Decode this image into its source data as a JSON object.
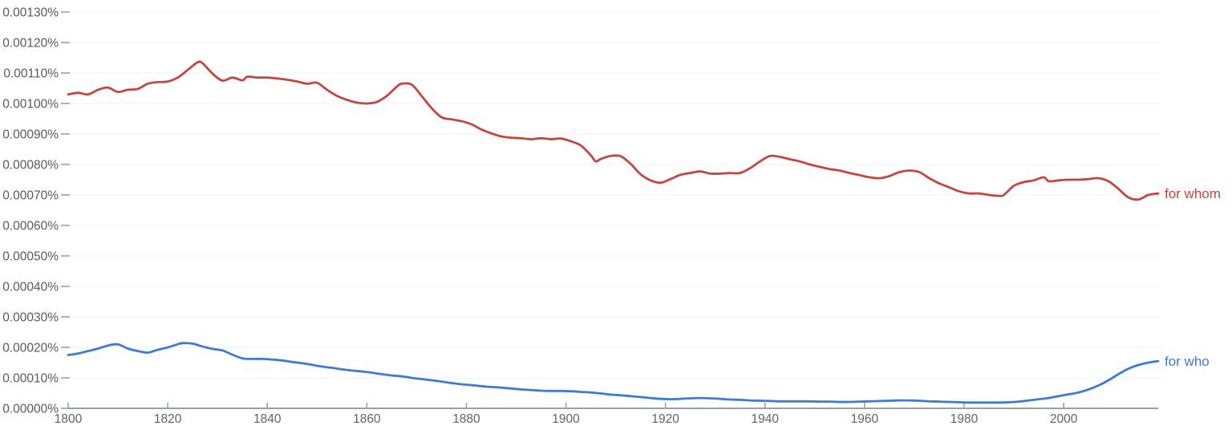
{
  "chart_data": {
    "type": "line",
    "title": "",
    "xlabel": "",
    "ylabel": "",
    "xlim": [
      1800,
      2019
    ],
    "ylim": [
      0,
      0.0013
    ],
    "grid": true,
    "legend_position": "end-of-line-labels",
    "grid_color": "#f2f2f2",
    "axis_color": "#9aa0a6",
    "tick_color": "#9aa0a6",
    "x_ticks": [
      {
        "value": 1800,
        "label": "1800"
      },
      {
        "value": 1820,
        "label": "1820"
      },
      {
        "value": 1840,
        "label": "1840"
      },
      {
        "value": 1860,
        "label": "1860"
      },
      {
        "value": 1880,
        "label": "1880"
      },
      {
        "value": 1900,
        "label": "1900"
      },
      {
        "value": 1920,
        "label": "1920"
      },
      {
        "value": 1940,
        "label": "1940"
      },
      {
        "value": 1960,
        "label": "1960"
      },
      {
        "value": 1980,
        "label": "1980"
      },
      {
        "value": 2000,
        "label": "2000"
      }
    ],
    "y_ticks": [
      {
        "value": 0.0,
        "label": "0.00000%"
      },
      {
        "value": 0.0001,
        "label": "0.00010%"
      },
      {
        "value": 0.0002,
        "label": "0.00020%"
      },
      {
        "value": 0.0003,
        "label": "0.00030%"
      },
      {
        "value": 0.0004,
        "label": "0.00040%"
      },
      {
        "value": 0.0005,
        "label": "0.00050%"
      },
      {
        "value": 0.0006,
        "label": "0.00060%"
      },
      {
        "value": 0.0007,
        "label": "0.00070%"
      },
      {
        "value": 0.0008,
        "label": "0.00080%"
      },
      {
        "value": 0.0009,
        "label": "0.00090%"
      },
      {
        "value": 0.001,
        "label": "0.00100%"
      },
      {
        "value": 0.0011,
        "label": "0.00110%"
      },
      {
        "value": 0.0012,
        "label": "0.00120%"
      },
      {
        "value": 0.0013,
        "label": "0.00130%"
      }
    ],
    "series": [
      {
        "name": "for whom",
        "color": "#c5463e",
        "points": [
          [
            1800,
            0.00103
          ],
          [
            1802,
            0.001035
          ],
          [
            1804,
            0.00103
          ],
          [
            1806,
            0.001045
          ],
          [
            1808,
            0.001052
          ],
          [
            1810,
            0.001038
          ],
          [
            1812,
            0.001045
          ],
          [
            1814,
            0.001048
          ],
          [
            1816,
            0.001065
          ],
          [
            1818,
            0.00107
          ],
          [
            1820,
            0.001072
          ],
          [
            1822,
            0.001085
          ],
          [
            1824,
            0.00111
          ],
          [
            1826,
            0.001135
          ],
          [
            1827,
            0.001132
          ],
          [
            1829,
            0.001098
          ],
          [
            1831,
            0.001075
          ],
          [
            1833,
            0.001085
          ],
          [
            1835,
            0.001076
          ],
          [
            1836,
            0.001088
          ],
          [
            1838,
            0.001085
          ],
          [
            1840,
            0.001085
          ],
          [
            1842,
            0.001082
          ],
          [
            1844,
            0.001078
          ],
          [
            1846,
            0.001072
          ],
          [
            1848,
            0.001065
          ],
          [
            1850,
            0.001068
          ],
          [
            1852,
            0.001045
          ],
          [
            1854,
            0.001025
          ],
          [
            1856,
            0.001012
          ],
          [
            1858,
            0.001003
          ],
          [
            1860,
            0.001
          ],
          [
            1862,
            0.001005
          ],
          [
            1864,
            0.001025
          ],
          [
            1866,
            0.001055
          ],
          [
            1867,
            0.001065
          ],
          [
            1869,
            0.001062
          ],
          [
            1871,
            0.001025
          ],
          [
            1873,
            0.000985
          ],
          [
            1875,
            0.000955
          ],
          [
            1877,
            0.000948
          ],
          [
            1879,
            0.000942
          ],
          [
            1881,
            0.000932
          ],
          [
            1883,
            0.000915
          ],
          [
            1885,
            0.000902
          ],
          [
            1887,
            0.000892
          ],
          [
            1889,
            0.000888
          ],
          [
            1891,
            0.000886
          ],
          [
            1893,
            0.000883
          ],
          [
            1895,
            0.000886
          ],
          [
            1897,
            0.000883
          ],
          [
            1899,
            0.000885
          ],
          [
            1901,
            0.000876
          ],
          [
            1903,
            0.000862
          ],
          [
            1905,
            0.00083
          ],
          [
            1906,
            0.00081
          ],
          [
            1907,
            0.000818
          ],
          [
            1909,
            0.000828
          ],
          [
            1911,
            0.000827
          ],
          [
            1913,
            0.000802
          ],
          [
            1915,
            0.000768
          ],
          [
            1917,
            0.000748
          ],
          [
            1919,
            0.00074
          ],
          [
            1921,
            0.000752
          ],
          [
            1923,
            0.000766
          ],
          [
            1925,
            0.000772
          ],
          [
            1927,
            0.000777
          ],
          [
            1929,
            0.00077
          ],
          [
            1931,
            0.00077
          ],
          [
            1933,
            0.000772
          ],
          [
            1935,
            0.000772
          ],
          [
            1937,
            0.000788
          ],
          [
            1939,
            0.00081
          ],
          [
            1941,
            0.000828
          ],
          [
            1943,
            0.000825
          ],
          [
            1945,
            0.000817
          ],
          [
            1947,
            0.00081
          ],
          [
            1949,
            0.0008
          ],
          [
            1951,
            0.000792
          ],
          [
            1953,
            0.000785
          ],
          [
            1955,
            0.00078
          ],
          [
            1957,
            0.000772
          ],
          [
            1959,
            0.000765
          ],
          [
            1961,
            0.000758
          ],
          [
            1963,
            0.000755
          ],
          [
            1965,
            0.000762
          ],
          [
            1967,
            0.000775
          ],
          [
            1969,
            0.00078
          ],
          [
            1971,
            0.000775
          ],
          [
            1973,
            0.000755
          ],
          [
            1975,
            0.000738
          ],
          [
            1977,
            0.000725
          ],
          [
            1979,
            0.000712
          ],
          [
            1981,
            0.000705
          ],
          [
            1983,
            0.000705
          ],
          [
            1985,
            0.0007
          ],
          [
            1987,
            0.000697
          ],
          [
            1988,
            0.0007
          ],
          [
            1990,
            0.00073
          ],
          [
            1992,
            0.000742
          ],
          [
            1994,
            0.000748
          ],
          [
            1996,
            0.000758
          ],
          [
            1997,
            0.000745
          ],
          [
            1999,
            0.000748
          ],
          [
            2001,
            0.00075
          ],
          [
            2003,
            0.00075
          ],
          [
            2005,
            0.000752
          ],
          [
            2007,
            0.000755
          ],
          [
            2009,
            0.000745
          ],
          [
            2011,
            0.00072
          ],
          [
            2013,
            0.000692
          ],
          [
            2015,
            0.000685
          ],
          [
            2017,
            0.0007
          ],
          [
            2019,
            0.000705
          ]
        ]
      },
      {
        "name": "for who",
        "color": "#3e7bd3",
        "points": [
          [
            1800,
            0.000175
          ],
          [
            1802,
            0.00018
          ],
          [
            1804,
            0.000188
          ],
          [
            1806,
            0.000196
          ],
          [
            1808,
            0.000206
          ],
          [
            1810,
            0.00021
          ],
          [
            1812,
            0.000196
          ],
          [
            1814,
            0.000188
          ],
          [
            1816,
            0.000183
          ],
          [
            1818,
            0.000192
          ],
          [
            1820,
            0.0002
          ],
          [
            1822,
            0.00021
          ],
          [
            1823,
            0.000214
          ],
          [
            1825,
            0.000212
          ],
          [
            1827,
            0.000203
          ],
          [
            1829,
            0.000195
          ],
          [
            1831,
            0.00019
          ],
          [
            1833,
            0.000176
          ],
          [
            1835,
            0.000164
          ],
          [
            1837,
            0.000162
          ],
          [
            1839,
            0.000162
          ],
          [
            1841,
            0.00016
          ],
          [
            1843,
            0.000157
          ],
          [
            1845,
            0.000152
          ],
          [
            1847,
            0.000148
          ],
          [
            1849,
            0.000143
          ],
          [
            1851,
            0.000137
          ],
          [
            1853,
            0.000133
          ],
          [
            1855,
            0.000128
          ],
          [
            1857,
            0.000124
          ],
          [
            1859,
            0.000121
          ],
          [
            1861,
            0.000117
          ],
          [
            1863,
            0.000112
          ],
          [
            1865,
            0.000108
          ],
          [
            1867,
            0.000105
          ],
          [
            1869,
            0.0001
          ],
          [
            1871,
            9.6e-05
          ],
          [
            1873,
            9.2e-05
          ],
          [
            1875,
            8.8e-05
          ],
          [
            1877,
            8.3e-05
          ],
          [
            1879,
            7.9e-05
          ],
          [
            1881,
            7.6e-05
          ],
          [
            1883,
            7.3e-05
          ],
          [
            1885,
            7e-05
          ],
          [
            1887,
            6.8e-05
          ],
          [
            1889,
            6.5e-05
          ],
          [
            1891,
            6.2e-05
          ],
          [
            1893,
            6e-05
          ],
          [
            1895,
            5.8e-05
          ],
          [
            1897,
            5.7e-05
          ],
          [
            1899,
            5.7e-05
          ],
          [
            1901,
            5.6e-05
          ],
          [
            1903,
            5.4e-05
          ],
          [
            1905,
            5.2e-05
          ],
          [
            1907,
            4.9e-05
          ],
          [
            1909,
            4.5e-05
          ],
          [
            1911,
            4.3e-05
          ],
          [
            1913,
            4e-05
          ],
          [
            1915,
            3.7e-05
          ],
          [
            1917,
            3.4e-05
          ],
          [
            1919,
            3.1e-05
          ],
          [
            1921,
            3e-05
          ],
          [
            1923,
            3.1e-05
          ],
          [
            1925,
            3.3e-05
          ],
          [
            1927,
            3.4e-05
          ],
          [
            1929,
            3.3e-05
          ],
          [
            1931,
            3.1e-05
          ],
          [
            1933,
            2.9e-05
          ],
          [
            1935,
            2.8e-05
          ],
          [
            1937,
            2.6e-05
          ],
          [
            1939,
            2.5e-05
          ],
          [
            1941,
            2.4e-05
          ],
          [
            1943,
            2.3e-05
          ],
          [
            1945,
            2.3e-05
          ],
          [
            1947,
            2.3e-05
          ],
          [
            1949,
            2.3e-05
          ],
          [
            1951,
            2.2e-05
          ],
          [
            1953,
            2.2e-05
          ],
          [
            1955,
            2.1e-05
          ],
          [
            1957,
            2.1e-05
          ],
          [
            1959,
            2.2e-05
          ],
          [
            1961,
            2.3e-05
          ],
          [
            1963,
            2.4e-05
          ],
          [
            1965,
            2.5e-05
          ],
          [
            1967,
            2.6e-05
          ],
          [
            1969,
            2.6e-05
          ],
          [
            1971,
            2.5e-05
          ],
          [
            1973,
            2.3e-05
          ],
          [
            1975,
            2.2e-05
          ],
          [
            1977,
            2.1e-05
          ],
          [
            1979,
            2e-05
          ],
          [
            1981,
            1.9e-05
          ],
          [
            1983,
            1.9e-05
          ],
          [
            1985,
            1.9e-05
          ],
          [
            1987,
            1.9e-05
          ],
          [
            1989,
            2e-05
          ],
          [
            1991,
            2.2e-05
          ],
          [
            1993,
            2.6e-05
          ],
          [
            1995,
            3e-05
          ],
          [
            1997,
            3.4e-05
          ],
          [
            1999,
            4e-05
          ],
          [
            2001,
            4.6e-05
          ],
          [
            2003,
            5.2e-05
          ],
          [
            2005,
            6.2e-05
          ],
          [
            2007,
            7.5e-05
          ],
          [
            2009,
            9.2e-05
          ],
          [
            2011,
            0.000112
          ],
          [
            2013,
            0.00013
          ],
          [
            2015,
            0.000142
          ],
          [
            2017,
            0.00015
          ],
          [
            2019,
            0.000155
          ]
        ]
      }
    ]
  }
}
